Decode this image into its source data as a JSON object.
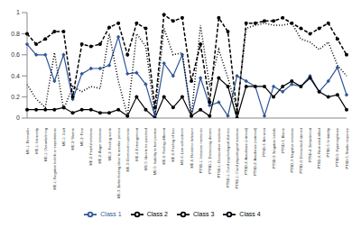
{
  "chart_data": {
    "type": "line",
    "categories": [
      "ME-1: Reminder",
      "ME-1: Intrusivity",
      "ME-1: Overwhelming",
      "ME-1: Negative beliefs or expectations",
      "ME-1: Guilt",
      "ME-2: Shame",
      "ME-2: Fear",
      "ME-2: Fearful emotions",
      "ME-2: Anger emotions",
      "ME-2: Feeling numb",
      "ME-3: Better feeling close to another person",
      "ME-3: Dismissal in persons",
      "ME-4: Estrangement",
      "ME-5: Idea to be punished",
      "ME-5: Inability to feel positive",
      "ME-6: Feeling different",
      "ME-6: Feeling of loss",
      "ME-6: Low self-esteem",
      "ME-6: Reckless behavior",
      "PTSD-1: Intrusive memories",
      "PTSD-1: Distressing dreams",
      "PTSD-1: Dissociative reactions",
      "PTSD-1: Cued psychological distress",
      "PTSD-1: Cued physiological reactions",
      "PTSD-2: Avoidance (internal)",
      "PTSD-2: Avoidance (external)",
      "PTSD-3: Amnesia",
      "PTSD-3: Negative beliefs",
      "PTSD-3: Blame",
      "PTSD-3: Negative emotions",
      "PTSD-4: Diminished interest",
      "PTSD-4: Detachment",
      "PTSD-4: Restricted affect",
      "PTSD-5: Irritability",
      "PTSD-5: Hypervigilance",
      "PTSD-5: Startle response"
    ],
    "series": [
      {
        "name": "Class 1",
        "color": "#2f5597",
        "line_style": "solid",
        "marker": "diamond",
        "values": [
          0.7,
          0.6,
          0.6,
          0.35,
          0.6,
          0.18,
          0.42,
          0.47,
          0.47,
          0.5,
          0.77,
          0.42,
          0.43,
          0.32,
          0.02,
          0.52,
          0.4,
          0.6,
          0.02,
          0.38,
          0.12,
          0.15,
          0.02,
          0.4,
          0.35,
          0.3,
          0.02,
          0.3,
          0.25,
          0.32,
          0.3,
          0.4,
          0.25,
          0.35,
          0.48,
          0.22
        ]
      },
      {
        "name": "Class 2",
        "color": "#000000",
        "line_style": "solid",
        "marker": "circle",
        "values": [
          0.08,
          0.08,
          0.08,
          0.08,
          0.1,
          0.05,
          0.08,
          0.08,
          0.05,
          0.05,
          0.08,
          0.02,
          0.2,
          0.08,
          0.0,
          0.2,
          0.1,
          0.2,
          0.02,
          0.08,
          0.02,
          0.38,
          0.3,
          0.0,
          0.3,
          0.3,
          0.3,
          0.2,
          0.3,
          0.35,
          0.3,
          0.38,
          0.25,
          0.2,
          0.22,
          0.08
        ]
      },
      {
        "name": "Class 3",
        "color": "#000000",
        "line_style": "dotted",
        "marker": "none",
        "values": [
          0.32,
          0.18,
          0.1,
          0.62,
          0.08,
          0.3,
          0.25,
          0.3,
          0.28,
          0.8,
          0.35,
          0.02,
          0.8,
          0.68,
          0.02,
          0.85,
          0.6,
          0.62,
          0.02,
          0.88,
          0.3,
          0.65,
          0.38,
          0.08,
          0.85,
          0.88,
          0.9,
          0.88,
          0.88,
          0.9,
          0.75,
          0.72,
          0.65,
          0.72,
          0.5,
          0.4
        ]
      },
      {
        "name": "Class 4",
        "color": "#000000",
        "line_style": "dashed",
        "marker": "circle",
        "values": [
          0.8,
          0.7,
          0.75,
          0.82,
          0.82,
          0.2,
          0.7,
          0.68,
          0.7,
          0.86,
          0.9,
          0.6,
          0.9,
          0.85,
          0.1,
          0.98,
          0.92,
          0.95,
          0.35,
          0.7,
          0.15,
          0.95,
          0.82,
          0.05,
          0.9,
          0.9,
          0.92,
          0.92,
          0.95,
          0.9,
          0.85,
          0.8,
          0.85,
          0.9,
          0.75,
          0.6
        ]
      }
    ],
    "ylim": [
      0,
      1
    ],
    "yticks": [
      0,
      0.2,
      0.4,
      0.6,
      0.8,
      1
    ],
    "grid": false,
    "legend": "bottom"
  }
}
